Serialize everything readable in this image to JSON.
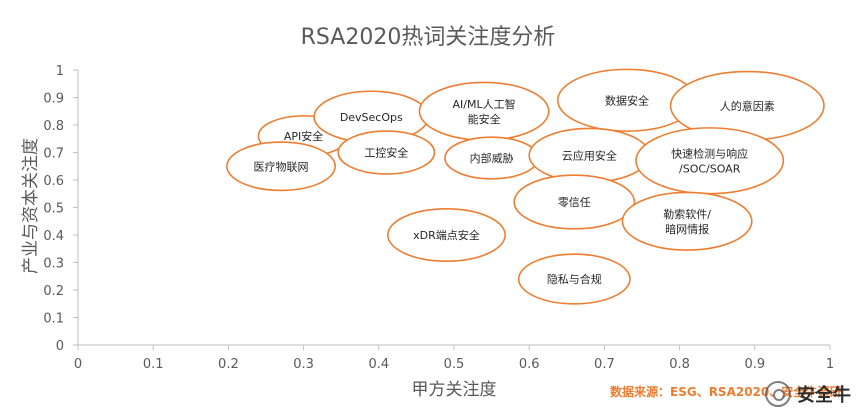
{
  "chart_data": {
    "type": "bubble",
    "title": "RSA2020热词关注度分析",
    "xlabel": "甲方关注度",
    "ylabel": "产业与资本关注度",
    "xlim": [
      0,
      1
    ],
    "ylim": [
      0,
      1
    ],
    "x_ticks": [
      "0",
      "0.1",
      "0.2",
      "0.3",
      "0.4",
      "0.5",
      "0.6",
      "0.7",
      "0.8",
      "0.9",
      "1"
    ],
    "y_ticks": [
      "0",
      "0.1",
      "0.2",
      "0.3",
      "0.4",
      "0.5",
      "0.6",
      "0.7",
      "0.8",
      "0.9",
      "1"
    ],
    "grid": false,
    "bubble_color": "#ED7D31",
    "points": [
      {
        "label": "API安全",
        "x": 0.3,
        "y": 0.76,
        "size": 0.06
      },
      {
        "label": "医疗物联网",
        "x": 0.27,
        "y": 0.65,
        "size": 0.072
      },
      {
        "label": "DevSecOps",
        "x": 0.39,
        "y": 0.83,
        "size": 0.076
      },
      {
        "label": "工控安全",
        "x": 0.41,
        "y": 0.7,
        "size": 0.064
      },
      {
        "label": "AI/ML人工智能安全",
        "x": 0.54,
        "y": 0.85,
        "size": 0.086
      },
      {
        "label": "内部威胁",
        "x": 0.55,
        "y": 0.68,
        "size": 0.062
      },
      {
        "label": "数据安全",
        "x": 0.73,
        "y": 0.89,
        "size": 0.092
      },
      {
        "label": "人的意因素",
        "x": 0.89,
        "y": 0.87,
        "size": 0.102
      },
      {
        "label": "云应用安全",
        "x": 0.68,
        "y": 0.69,
        "size": 0.08
      },
      {
        "label": "快速检测与响应/SOC/SOAR",
        "x": 0.84,
        "y": 0.67,
        "size": 0.098
      },
      {
        "label": "零信任",
        "x": 0.66,
        "y": 0.52,
        "size": 0.08
      },
      {
        "label": "勒索软件/暗网情报",
        "x": 0.81,
        "y": 0.45,
        "size": 0.086
      },
      {
        "label": "xDR端点安全",
        "x": 0.49,
        "y": 0.4,
        "size": 0.078
      },
      {
        "label": "隐私与合规",
        "x": 0.66,
        "y": 0.24,
        "size": 0.074
      }
    ]
  },
  "footer": {
    "source": "数据来源：ESG、RSA2020、安全牛调研",
    "watermark": "安全牛"
  }
}
